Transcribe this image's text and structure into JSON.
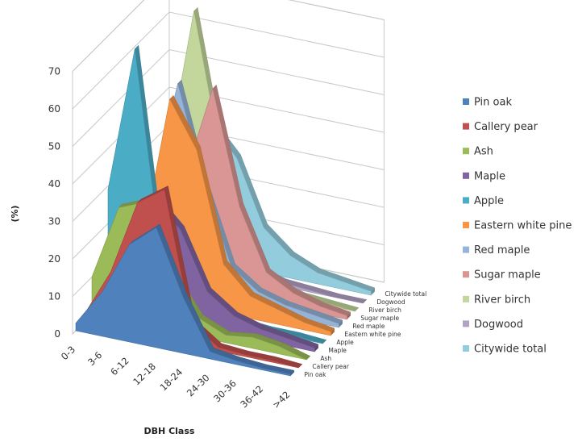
{
  "chart_data": {
    "type": "area",
    "variant": "3d-area",
    "title": "",
    "xlabel": "DBH Class",
    "ylabel": "(%)",
    "ylim": [
      0,
      70
    ],
    "yticks": [
      0,
      10,
      20,
      30,
      40,
      50,
      60,
      70
    ],
    "grid": true,
    "legend_position": "right",
    "categories": [
      "0-3",
      "3-6",
      "6-12",
      "12-18",
      "18-24",
      "24-30",
      "30-36",
      "36-42",
      ">42"
    ],
    "series": [
      {
        "name": "Pin oak",
        "color": "#4f81bd",
        "values": [
          2,
          12,
          26,
          32,
          15,
          2,
          1,
          0.5,
          0.5
        ]
      },
      {
        "name": "Callery pear",
        "color": "#c0504d",
        "values": [
          2,
          15,
          35,
          40,
          6,
          1,
          0.5,
          0.5,
          0
        ]
      },
      {
        "name": "Ash",
        "color": "#9bbb59",
        "values": [
          10,
          30,
          33,
          15,
          5,
          2,
          3,
          2,
          0
        ]
      },
      {
        "name": "Maple",
        "color": "#8064a2",
        "values": [
          4,
          16,
          32,
          25,
          10,
          5,
          3,
          2,
          1
        ]
      },
      {
        "name": "Apple",
        "color": "#4bacc6",
        "values": [
          29,
          68,
          13,
          4,
          2,
          1,
          0.5,
          0.5,
          0
        ]
      },
      {
        "name": "Eastern white pine",
        "color": "#f79646",
        "values": [
          3,
          15,
          54,
          42,
          13,
          6,
          4,
          2,
          1
        ]
      },
      {
        "name": "Red maple",
        "color": "#95b3d7",
        "values": [
          3,
          25,
          56,
          30,
          10,
          5,
          3,
          2,
          1
        ]
      },
      {
        "name": "Sugar maple",
        "color": "#d99694",
        "values": [
          3,
          10,
          30,
          54,
          24,
          8,
          4,
          2,
          1
        ]
      },
      {
        "name": "River birch",
        "color": "#c3d69b",
        "values": [
          4,
          30,
          71,
          34,
          9,
          3,
          1,
          0.5,
          0
        ]
      },
      {
        "name": "Dogwood",
        "color": "#b3a2c7",
        "values": [
          4,
          23,
          29,
          10,
          3,
          1,
          0.5,
          0,
          0
        ]
      },
      {
        "name": "Citywide total",
        "color": "#93cddd",
        "values": [
          5,
          20,
          37,
          29,
          12,
          6,
          3,
          2,
          1
        ]
      }
    ]
  }
}
